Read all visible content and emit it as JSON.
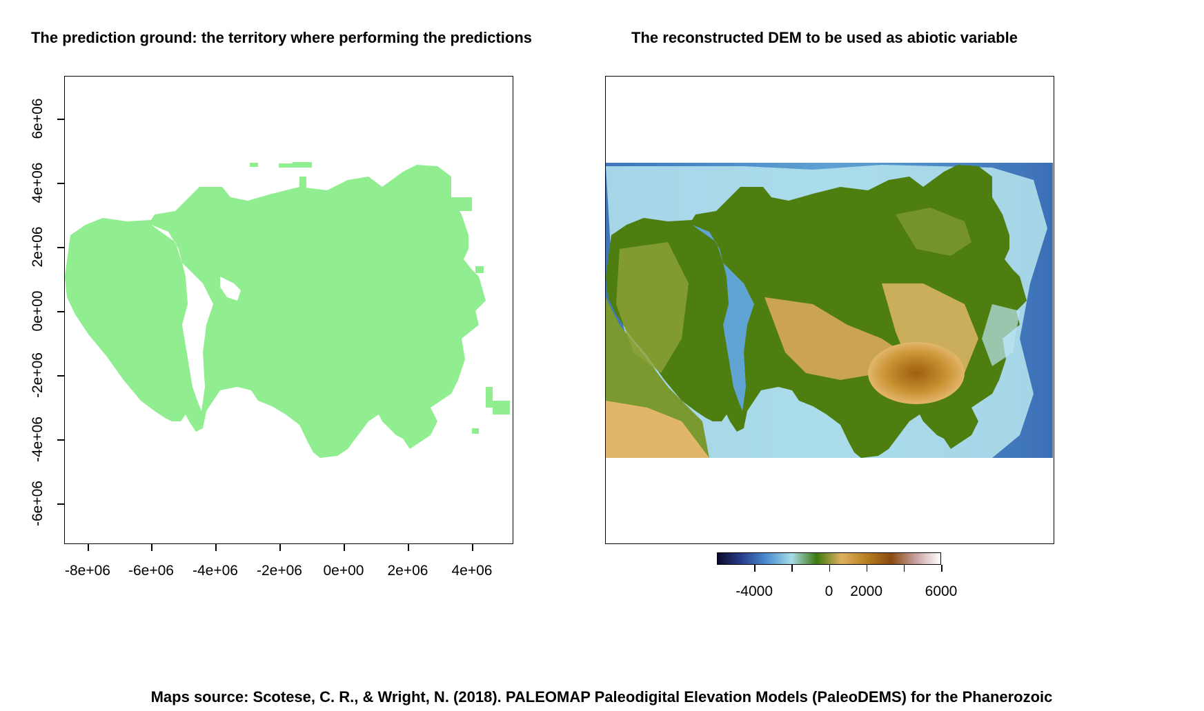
{
  "left_panel": {
    "title": "The prediction ground: the territory where performing the predictions",
    "fill_color": "#90EE90",
    "y_ticks": [
      "6e+06",
      "4e+06",
      "2e+06",
      "0e+00",
      "-2e+06",
      "-4e+06",
      "-6e+06"
    ],
    "x_ticks": [
      "-8e+06",
      "-6e+06",
      "-4e+06",
      "-2e+06",
      "0e+00",
      "2e+06",
      "4e+06"
    ]
  },
  "right_panel": {
    "title": "The reconstructed DEM to be used as abiotic variable",
    "colors": {
      "ocean_deep": "#3B6FB6",
      "ocean_mid": "#5FA4D3",
      "ocean_shallow": "#B9E6EF",
      "lowland": "#4E7E0F",
      "midland": "#8FA23A",
      "upland": "#E2B66A",
      "highland": "#B8782A"
    }
  },
  "legend": {
    "tick_labels": [
      "-4000",
      "0",
      "2000",
      "6000"
    ],
    "colors": [
      "#0b0b2a",
      "#2a3f8f",
      "#4d8fd0",
      "#a8dde8",
      "#3d7a10",
      "#e0b060",
      "#b58020",
      "#8a4a10",
      "#c8a0a0",
      "#ffffff"
    ]
  },
  "footer": {
    "source": "Maps source: Scotese, C. R., & Wright, N. (2018). PALEOMAP Paleodigital Elevation Models (PaleoDEMS) for the Phanerozoic"
  }
}
